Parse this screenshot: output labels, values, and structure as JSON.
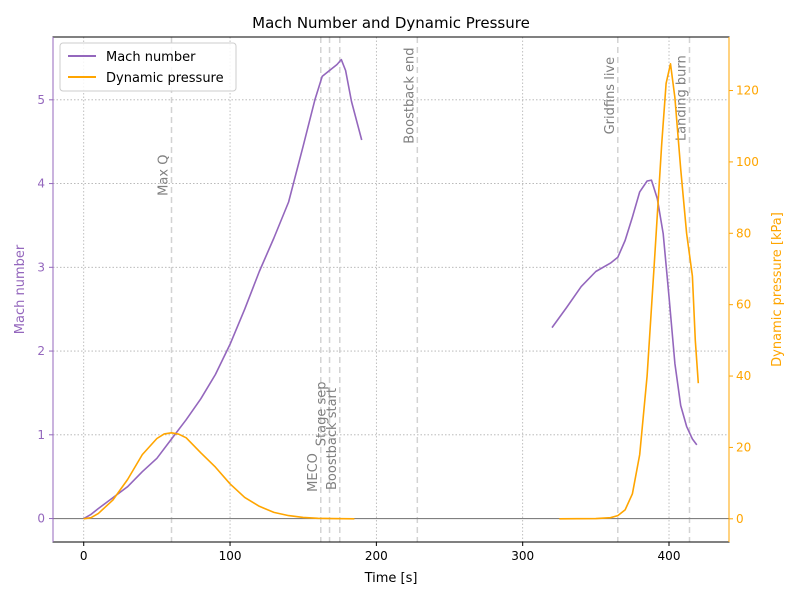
{
  "chart_data": {
    "type": "line",
    "title": "Mach Number and Dynamic Pressure",
    "xlabel": "Time [s]",
    "ylabel_left": "Mach number",
    "ylabel_right": "Dynamic pressure [kPa]",
    "xlim": [
      -21,
      441
    ],
    "ylim_left": [
      -0.28,
      5.75
    ],
    "ylim_right": [
      -6.5,
      135
    ],
    "xticks": [
      0,
      100,
      200,
      300,
      400
    ],
    "yticks_left": [
      0,
      1,
      2,
      3,
      4,
      5
    ],
    "yticks_right": [
      0,
      20,
      40,
      60,
      80,
      100,
      120
    ],
    "grid": true,
    "legend_position": "upper-left",
    "colors": {
      "mach": "#9467bd",
      "pressure": "#ffa500",
      "event_line": "#d3d3d3",
      "event_text": "#808080",
      "zero_line": "#808080"
    },
    "series": [
      {
        "name": "Mach number",
        "axis": "left",
        "segments": [
          [
            [
              0,
              0
            ],
            [
              5,
              0.05
            ],
            [
              10,
              0.12
            ],
            [
              20,
              0.25
            ],
            [
              30,
              0.38
            ],
            [
              40,
              0.56
            ],
            [
              50,
              0.72
            ],
            [
              60,
              0.95
            ],
            [
              70,
              1.18
            ],
            [
              80,
              1.43
            ],
            [
              90,
              1.72
            ],
            [
              100,
              2.08
            ],
            [
              110,
              2.5
            ],
            [
              120,
              2.95
            ],
            [
              130,
              3.35
            ],
            [
              140,
              3.78
            ],
            [
              150,
              4.45
            ],
            [
              158,
              5.0
            ],
            [
              163,
              5.28
            ],
            [
              168,
              5.35
            ],
            [
              173,
              5.42
            ],
            [
              176,
              5.48
            ],
            [
              179,
              5.35
            ],
            [
              183,
              4.98
            ],
            [
              190,
              4.52
            ]
          ],
          [
            [
              320,
              2.28
            ],
            [
              330,
              2.52
            ],
            [
              340,
              2.77
            ],
            [
              350,
              2.95
            ],
            [
              360,
              3.05
            ],
            [
              365,
              3.12
            ],
            [
              370,
              3.32
            ],
            [
              375,
              3.6
            ],
            [
              380,
              3.9
            ],
            [
              385,
              4.03
            ],
            [
              388,
              4.04
            ],
            [
              392,
              3.82
            ],
            [
              396,
              3.4
            ],
            [
              400,
              2.65
            ],
            [
              404,
              1.85
            ],
            [
              408,
              1.35
            ],
            [
              412,
              1.1
            ],
            [
              416,
              0.95
            ],
            [
              419,
              0.88
            ]
          ]
        ]
      },
      {
        "name": "Dynamic pressure",
        "axis": "right",
        "segments": [
          [
            [
              0,
              0
            ],
            [
              5,
              0.3
            ],
            [
              10,
              1.5
            ],
            [
              20,
              5.3
            ],
            [
              30,
              11
            ],
            [
              40,
              18
            ],
            [
              50,
              22.5
            ],
            [
              55,
              23.8
            ],
            [
              60,
              24.1
            ],
            [
              65,
              23.7
            ],
            [
              70,
              22.7
            ],
            [
              80,
              18.5
            ],
            [
              90,
              14.5
            ],
            [
              100,
              9.8
            ],
            [
              110,
              6
            ],
            [
              120,
              3.5
            ],
            [
              130,
              1.8
            ],
            [
              140,
              0.9
            ],
            [
              150,
              0.4
            ],
            [
              160,
              0.15
            ],
            [
              170,
              0.05
            ],
            [
              185,
              0
            ]
          ],
          [
            [
              325,
              0
            ],
            [
              350,
              0.05
            ],
            [
              360,
              0.3
            ],
            [
              365,
              0.9
            ],
            [
              370,
              2.5
            ],
            [
              375,
              7
            ],
            [
              380,
              18
            ],
            [
              385,
              40
            ],
            [
              390,
              72
            ],
            [
              395,
              105
            ],
            [
              398,
              122
            ],
            [
              401,
              127.5
            ],
            [
              404,
              118
            ],
            [
              408,
              98
            ],
            [
              412,
              80
            ],
            [
              416,
              68
            ],
            [
              418,
              50
            ],
            [
              420,
              38
            ]
          ]
        ]
      }
    ],
    "events": [
      {
        "label": "Max Q",
        "x": 60,
        "label_y": 4.1
      },
      {
        "label": "MECO",
        "x": 162,
        "label_y": 0.55
      },
      {
        "label": "Stage sep",
        "x": 168,
        "label_y": 1.25
      },
      {
        "label": "Boostback start",
        "x": 175,
        "label_y": 0.95
      },
      {
        "label": "Boostback end",
        "x": 228,
        "label_y": 5.05
      },
      {
        "label": "Gridfins live",
        "x": 365,
        "label_y": 5.05
      },
      {
        "label": "Landing burn",
        "x": 414,
        "label_y": 5.02
      }
    ]
  }
}
